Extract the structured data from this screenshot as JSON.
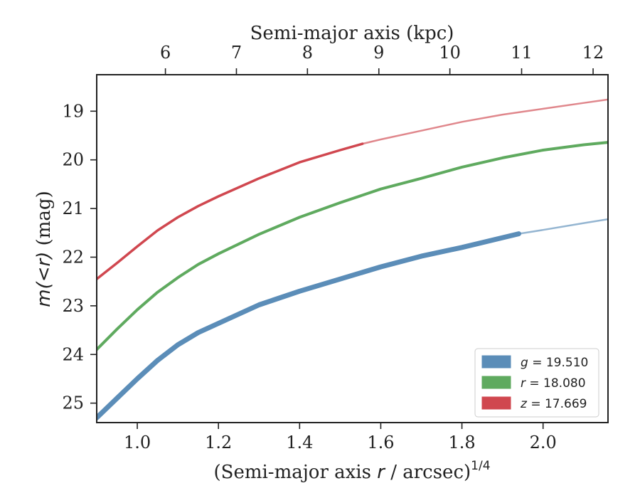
{
  "chart_data": {
    "type": "line",
    "title": "",
    "xlabel_prefix": "(Semi-major axis ",
    "xlabel_var": "r",
    "xlabel_mid": " / arcsec)",
    "xlabel_sup": "1/4",
    "ylabel_var": "m(<r)",
    "ylabel_suffix": " (mag)",
    "top_xlabel": "Semi-major axis (kpc)",
    "xlim": [
      0.9,
      2.16
    ],
    "ylim": [
      25.4,
      18.25
    ],
    "y_inverted": true,
    "xticks": [
      1.0,
      1.2,
      1.4,
      1.6,
      1.8,
      2.0
    ],
    "xtick_labels": [
      "1.0",
      "1.2",
      "1.4",
      "1.6",
      "1.8",
      "2.0"
    ],
    "yticks": [
      19,
      20,
      21,
      22,
      23,
      24,
      25
    ],
    "ytick_labels": [
      "19",
      "20",
      "21",
      "22",
      "23",
      "24",
      "25"
    ],
    "top_ticks_x": [
      1.0693,
      1.2443,
      1.4193,
      1.5953,
      1.7703,
      1.9471,
      2.1233
    ],
    "top_tick_labels": [
      "6",
      "7",
      "8",
      "9",
      "10",
      "11",
      "12"
    ],
    "legend_position": "lower right",
    "grid": false,
    "series": [
      {
        "name": "g",
        "label_value": "= 19.510",
        "color": "#5B8DB8",
        "measured_until": 1.94,
        "x": [
          0.9,
          0.95,
          1.0,
          1.05,
          1.1,
          1.15,
          1.2,
          1.3,
          1.4,
          1.5,
          1.6,
          1.7,
          1.8,
          1.9,
          1.94,
          2.0,
          2.1,
          2.16
        ],
        "y": [
          25.3,
          24.9,
          24.5,
          24.12,
          23.8,
          23.55,
          23.36,
          22.98,
          22.7,
          22.45,
          22.2,
          21.98,
          21.8,
          21.6,
          21.52,
          21.44,
          21.3,
          21.22
        ]
      },
      {
        "name": "r",
        "label_value": "= 18.080",
        "color": "#5FAA5F",
        "measured_until": 2.16,
        "x": [
          0.9,
          0.95,
          1.0,
          1.05,
          1.1,
          1.15,
          1.2,
          1.3,
          1.4,
          1.5,
          1.6,
          1.7,
          1.8,
          1.9,
          2.0,
          2.1,
          2.16
        ],
        "y": [
          23.9,
          23.48,
          23.08,
          22.72,
          22.42,
          22.15,
          21.93,
          21.53,
          21.18,
          20.88,
          20.6,
          20.38,
          20.15,
          19.96,
          19.8,
          19.69,
          19.64
        ]
      },
      {
        "name": "z",
        "label_value": "= 17.669",
        "color": "#D0474F",
        "measured_until": 1.555,
        "x": [
          0.9,
          0.95,
          1.0,
          1.05,
          1.1,
          1.15,
          1.2,
          1.3,
          1.4,
          1.5,
          1.555,
          1.6,
          1.7,
          1.8,
          1.9,
          2.0,
          2.1,
          2.16
        ],
        "y": [
          22.45,
          22.12,
          21.78,
          21.45,
          21.18,
          20.95,
          20.75,
          20.38,
          20.05,
          19.8,
          19.67,
          19.58,
          19.4,
          19.22,
          19.07,
          18.95,
          18.83,
          18.76
        ]
      }
    ]
  }
}
